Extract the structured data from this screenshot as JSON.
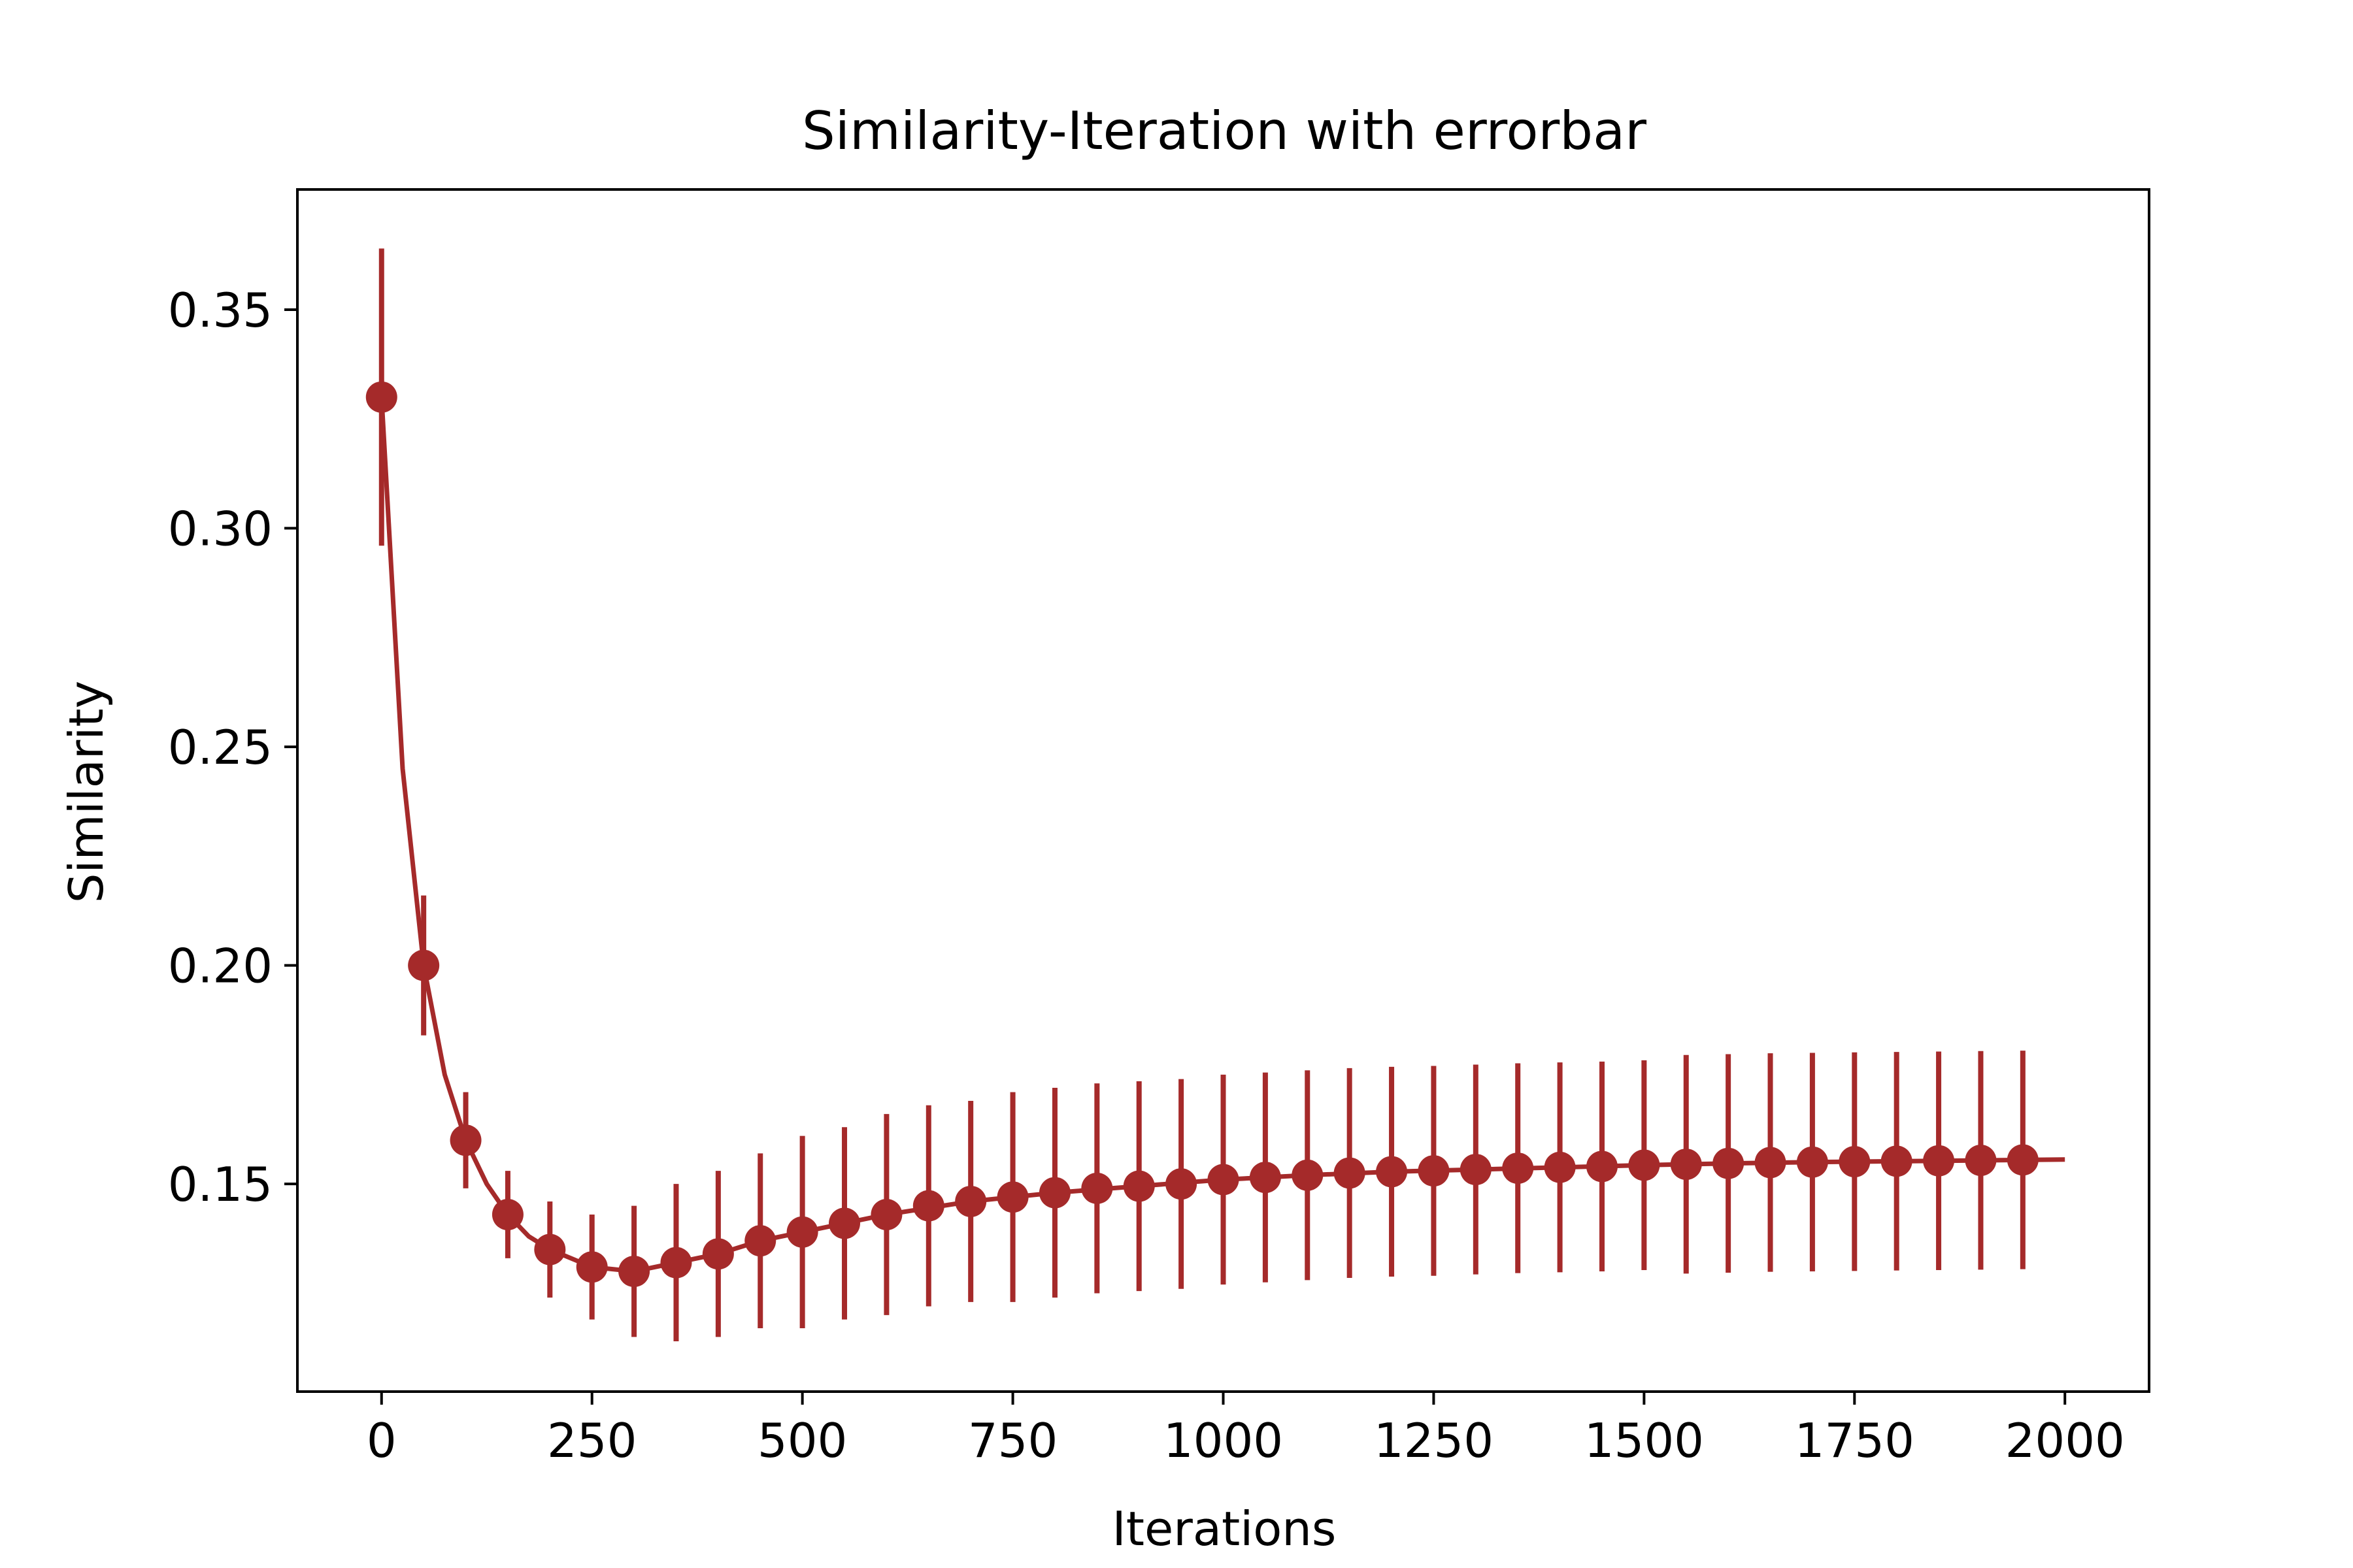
{
  "chart_data": {
    "type": "line",
    "title": "Similarity-Iteration with errorbar",
    "xlabel": "Iterations",
    "ylabel": "Similarity",
    "xlim": [
      -100,
      2100
    ],
    "ylim": [
      0.1025,
      0.3775
    ],
    "xticks": [
      0,
      250,
      500,
      750,
      1000,
      1250,
      1500,
      1750,
      2000
    ],
    "xtick_labels": [
      "0",
      "250",
      "500",
      "750",
      "1000",
      "1250",
      "1500",
      "1750",
      "2000"
    ],
    "yticks": [
      0.15,
      0.2,
      0.25,
      0.3,
      0.35
    ],
    "ytick_labels": [
      "0.15",
      "0.20",
      "0.25",
      "0.30",
      "0.35"
    ],
    "grid": false,
    "color": "#a52a2a",
    "series": [
      {
        "x": [
          0,
          50,
          100,
          150,
          200,
          250,
          300,
          350,
          400,
          450,
          500,
          550,
          600,
          650,
          700,
          750,
          800,
          850,
          900,
          950,
          1000,
          1050,
          1100,
          1150,
          1200,
          1250,
          1300,
          1350,
          1400,
          1450,
          1500,
          1550,
          1600,
          1650,
          1700,
          1750,
          1800,
          1850,
          1900,
          1950
        ],
        "y": [
          0.33,
          0.2,
          0.16,
          0.143,
          0.135,
          0.131,
          0.13,
          0.132,
          0.134,
          0.137,
          0.139,
          0.141,
          0.143,
          0.145,
          0.146,
          0.147,
          0.148,
          0.149,
          0.1495,
          0.15,
          0.151,
          0.1515,
          0.152,
          0.1525,
          0.1528,
          0.153,
          0.1533,
          0.1536,
          0.1538,
          0.154,
          0.1543,
          0.1545,
          0.1547,
          0.1549,
          0.155,
          0.1551,
          0.1552,
          0.1553,
          0.1554,
          0.1555
        ],
        "err": [
          0.034,
          0.016,
          0.011,
          0.01,
          0.011,
          0.012,
          0.015,
          0.018,
          0.019,
          0.02,
          0.022,
          0.022,
          0.023,
          0.023,
          0.023,
          0.024,
          0.024,
          0.024,
          0.024,
          0.024,
          0.024,
          0.024,
          0.024,
          0.024,
          0.024,
          0.024,
          0.024,
          0.024,
          0.024,
          0.024,
          0.024,
          0.025,
          0.025,
          0.025,
          0.025,
          0.025,
          0.025,
          0.025,
          0.025,
          0.025
        ]
      }
    ],
    "fit_line": {
      "x": [
        0,
        25,
        50,
        75,
        100,
        125,
        150,
        175,
        200,
        250,
        300,
        350,
        400,
        450,
        500,
        600,
        700,
        800,
        900,
        1000,
        1100,
        1200,
        1300,
        1400,
        1500,
        1600,
        1700,
        1800,
        1900,
        2000
      ],
      "y": [
        0.33,
        0.245,
        0.2,
        0.175,
        0.16,
        0.15,
        0.143,
        0.138,
        0.135,
        0.131,
        0.13,
        0.132,
        0.134,
        0.137,
        0.139,
        0.143,
        0.146,
        0.148,
        0.1495,
        0.151,
        0.152,
        0.1528,
        0.1533,
        0.1538,
        0.1543,
        0.1547,
        0.155,
        0.1552,
        0.1554,
        0.1556
      ]
    }
  }
}
